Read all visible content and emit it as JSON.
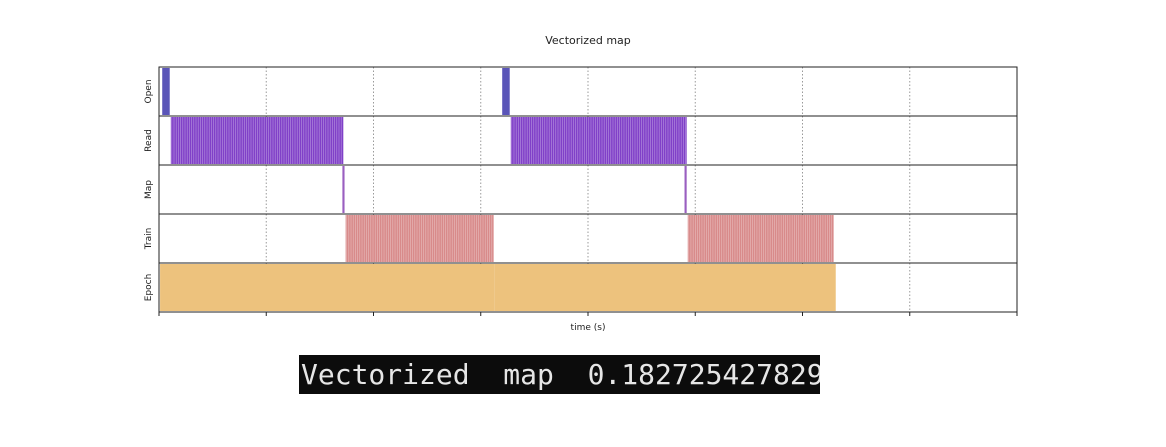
{
  "chart_data": {
    "type": "timeline",
    "title": "Vectorized map",
    "xlabel": "time (s)",
    "xlim": [
      0,
      80
    ],
    "rows": [
      "Open",
      "Read",
      "Map",
      "Train",
      "Epoch"
    ],
    "grid": true,
    "events": [
      {
        "row": "Open",
        "start": 0.3,
        "end": 1.0,
        "color": "#5a55b8",
        "pattern": "solid"
      },
      {
        "row": "Read",
        "start": 1.1,
        "end": 17.2,
        "color": "#8040c8",
        "pattern": "striped"
      },
      {
        "row": "Map",
        "start": 17.1,
        "end": 17.3,
        "color": "#9a5fc0",
        "pattern": "solid"
      },
      {
        "row": "Train",
        "start": 17.4,
        "end": 31.2,
        "color": "#d88a8a",
        "pattern": "striped"
      },
      {
        "row": "Epoch",
        "start": 0.1,
        "end": 31.3,
        "color": "#edc27d",
        "pattern": "solid"
      },
      {
        "row": "Open",
        "start": 32.0,
        "end": 32.7,
        "color": "#5a55b8",
        "pattern": "solid"
      },
      {
        "row": "Read",
        "start": 32.8,
        "end": 49.2,
        "color": "#8040c8",
        "pattern": "striped"
      },
      {
        "row": "Map",
        "start": 49.0,
        "end": 49.2,
        "color": "#9a5fc0",
        "pattern": "solid"
      },
      {
        "row": "Train",
        "start": 49.3,
        "end": 62.9,
        "color": "#d88a8a",
        "pattern": "striped"
      },
      {
        "row": "Epoch",
        "start": 31.3,
        "end": 63.1,
        "color": "#edc27d",
        "pattern": "solid"
      }
    ]
  },
  "console": {
    "text": "Vectorized  map  0.182725427829"
  }
}
